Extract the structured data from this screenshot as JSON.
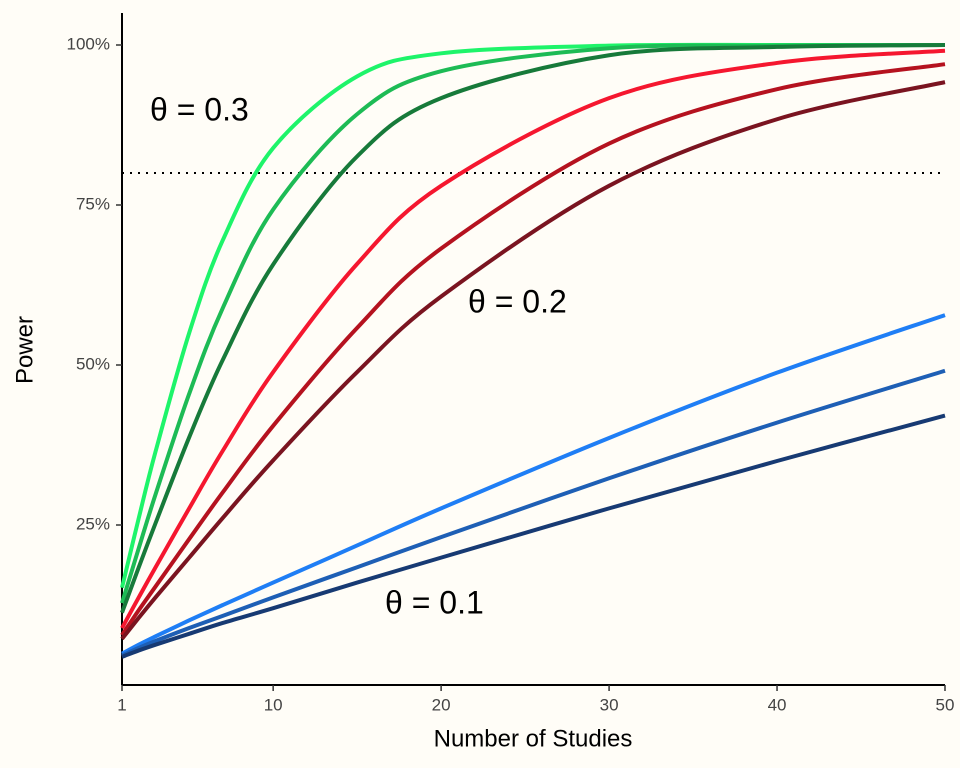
{
  "chart_data": {
    "type": "line",
    "x_label": "Number of Studies",
    "y_label": "Power",
    "x": [
      1,
      2,
      3,
      5,
      7,
      10,
      15,
      20,
      30,
      40,
      50
    ],
    "series": [
      {
        "color": "#1ef46a",
        "values": [
          15.2,
          26.1,
          36.5,
          55.0,
          69.5,
          83.9,
          95.1,
          98.7,
          99.9,
          100,
          100
        ]
      },
      {
        "color": "#1dbb55",
        "values": [
          12.8,
          21.4,
          29.8,
          45.5,
          58.9,
          74.3,
          89.2,
          95.9,
          99.5,
          99.9,
          100
        ]
      },
      {
        "color": "#177a3a",
        "values": [
          11.3,
          18.4,
          25.3,
          38.7,
          50.8,
          65.7,
          82.6,
          91.7,
          98.4,
          99.7,
          100
        ]
      },
      {
        "color": "#f5172f",
        "values": [
          8.9,
          13.7,
          18.4,
          27.6,
          36.6,
          48.9,
          65.8,
          78.0,
          91.7,
          97.2,
          99.1
        ]
      },
      {
        "color": "#b5121f",
        "values": [
          7.8,
          11.7,
          15.4,
          22.8,
          30.1,
          40.5,
          55.8,
          68.2,
          84.6,
          93.1,
          97.0
        ]
      },
      {
        "color": "#7a1420",
        "values": [
          7.2,
          10.5,
          13.7,
          19.9,
          26.1,
          35.1,
          48.9,
          60.7,
          78.0,
          88.4,
          94.2
        ]
      },
      {
        "color": "#1f7ef5",
        "values": [
          4.9,
          6.3,
          7.6,
          10.1,
          12.5,
          16.0,
          21.8,
          27.6,
          38.6,
          48.8,
          57.8
        ]
      },
      {
        "color": "#1e5fb5",
        "values": [
          4.6,
          5.8,
          6.9,
          8.9,
          10.8,
          13.7,
          18.4,
          23.1,
          32.3,
          41.0,
          49.1
        ]
      },
      {
        "color": "#173a73",
        "values": [
          4.4,
          5.4,
          6.3,
          8.0,
          9.7,
          12.0,
          16.0,
          19.9,
          27.6,
          35.0,
          42.1
        ]
      }
    ],
    "xlim": [
      1,
      50
    ],
    "xticks": [
      1,
      10,
      20,
      30,
      40,
      50
    ],
    "ylim": [
      0,
      105
    ],
    "yticks": [
      {
        "value": 25,
        "label": "25%"
      },
      {
        "value": 50,
        "label": "50%"
      },
      {
        "value": 75,
        "label": "75%"
      },
      {
        "value": 100,
        "label": "100%"
      }
    ],
    "hline": 80,
    "annotations": [
      "θ = 0.3",
      "θ = 0.2",
      "θ = 0.1"
    ]
  }
}
